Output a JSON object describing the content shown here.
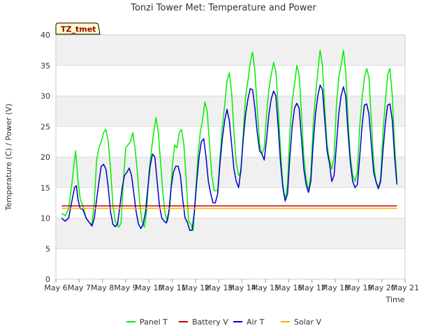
{
  "chart_data": {
    "type": "line",
    "title": "Tonzi Tower Met: Temperature and Power",
    "xlabel": "Time",
    "ylabel": "Temperature (C) / Power (V)",
    "badge": "TZ_tmet",
    "xlim": [
      6,
      21
    ],
    "ylim": [
      0,
      40
    ],
    "x_ticks": [
      6,
      7,
      8,
      9,
      10,
      11,
      12,
      13,
      14,
      15,
      16,
      17,
      18,
      19,
      20,
      21
    ],
    "x_tick_labels": [
      "May 6",
      "May 7",
      "May 8",
      "May 9",
      "May 10",
      "May 11",
      "May 12",
      "May 13",
      "May 14",
      "May 15",
      "May 16",
      "May 17",
      "May 18",
      "May 19",
      "May 20",
      "May 21"
    ],
    "y_ticks": [
      0,
      5,
      10,
      15,
      20,
      25,
      30,
      35,
      40
    ],
    "y_tick_labels": [
      "0",
      "5",
      "10",
      "15",
      "20",
      "25",
      "30",
      "35",
      "40"
    ],
    "series": [
      {
        "name": "Panel T",
        "color": "#00ee00",
        "points": [
          [
            6.25,
            10.8
          ],
          [
            6.4,
            10.4
          ],
          [
            6.55,
            11.5
          ],
          [
            6.7,
            16
          ],
          [
            6.8,
            19.5
          ],
          [
            6.85,
            21
          ],
          [
            6.95,
            16
          ],
          [
            7.05,
            13
          ],
          [
            7.15,
            12.2
          ],
          [
            7.3,
            10
          ],
          [
            7.45,
            9.2
          ],
          [
            7.55,
            9
          ],
          [
            7.65,
            12.5
          ],
          [
            7.75,
            19.5
          ],
          [
            7.85,
            21.5
          ],
          [
            7.95,
            22.5
          ],
          [
            8.05,
            24
          ],
          [
            8.15,
            24.5
          ],
          [
            8.25,
            22.5
          ],
          [
            8.35,
            18
          ],
          [
            8.45,
            12
          ],
          [
            8.55,
            9.5
          ],
          [
            8.7,
            8.5
          ],
          [
            8.8,
            9.2
          ],
          [
            8.9,
            16
          ],
          [
            9.0,
            21.5
          ],
          [
            9.1,
            22
          ],
          [
            9.2,
            22.5
          ],
          [
            9.3,
            24
          ],
          [
            9.4,
            21.5
          ],
          [
            9.5,
            17.5
          ],
          [
            9.6,
            12.5
          ],
          [
            9.7,
            9.5
          ],
          [
            9.8,
            8.5
          ],
          [
            9.9,
            11
          ],
          [
            10.0,
            17.5
          ],
          [
            10.1,
            21
          ],
          [
            10.2,
            24
          ],
          [
            10.3,
            26.5
          ],
          [
            10.4,
            24
          ],
          [
            10.5,
            19
          ],
          [
            10.6,
            14
          ],
          [
            10.7,
            10.5
          ],
          [
            10.8,
            9.5
          ],
          [
            10.9,
            12
          ],
          [
            11.0,
            18.5
          ],
          [
            11.1,
            22
          ],
          [
            11.2,
            21.5
          ],
          [
            11.3,
            24
          ],
          [
            11.4,
            24.5
          ],
          [
            11.5,
            22
          ],
          [
            11.6,
            16
          ],
          [
            11.7,
            9.5
          ],
          [
            11.8,
            9
          ],
          [
            11.9,
            8
          ],
          [
            12.0,
            14
          ],
          [
            12.1,
            20
          ],
          [
            12.2,
            24
          ],
          [
            12.3,
            26
          ],
          [
            12.4,
            29
          ],
          [
            12.5,
            27.5
          ],
          [
            12.6,
            22
          ],
          [
            12.7,
            17
          ],
          [
            12.8,
            14.5
          ],
          [
            12.95,
            14.5
          ],
          [
            13.05,
            20
          ],
          [
            13.15,
            25
          ],
          [
            13.25,
            28.5
          ],
          [
            13.35,
            32.5
          ],
          [
            13.45,
            33.8
          ],
          [
            13.55,
            30.5
          ],
          [
            13.65,
            24
          ],
          [
            13.75,
            19
          ],
          [
            13.85,
            17
          ],
          [
            13.95,
            17.5
          ],
          [
            14.05,
            24
          ],
          [
            14.15,
            30
          ],
          [
            14.25,
            32.5
          ],
          [
            14.35,
            35.5
          ],
          [
            14.45,
            37.2
          ],
          [
            14.55,
            34
          ],
          [
            14.65,
            28
          ],
          [
            14.75,
            22
          ],
          [
            14.85,
            20.5
          ],
          [
            14.95,
            21.5
          ],
          [
            15.05,
            27
          ],
          [
            15.15,
            31
          ],
          [
            15.25,
            33.5
          ],
          [
            15.35,
            35.5
          ],
          [
            15.45,
            34
          ],
          [
            15.55,
            28
          ],
          [
            15.65,
            21
          ],
          [
            15.75,
            15.5
          ],
          [
            15.85,
            13
          ],
          [
            15.95,
            15.5
          ],
          [
            16.05,
            24
          ],
          [
            16.15,
            29
          ],
          [
            16.25,
            32
          ],
          [
            16.35,
            35
          ],
          [
            16.45,
            33.5
          ],
          [
            16.55,
            27
          ],
          [
            16.65,
            20
          ],
          [
            16.75,
            16.5
          ],
          [
            16.85,
            14.5
          ],
          [
            16.95,
            17
          ],
          [
            17.05,
            25
          ],
          [
            17.15,
            30
          ],
          [
            17.25,
            34
          ],
          [
            17.35,
            37.5
          ],
          [
            17.45,
            35
          ],
          [
            17.55,
            28
          ],
          [
            17.65,
            22
          ],
          [
            17.75,
            19.5
          ],
          [
            17.85,
            18
          ],
          [
            17.95,
            20
          ],
          [
            18.05,
            28.5
          ],
          [
            18.15,
            33
          ],
          [
            18.25,
            35
          ],
          [
            18.35,
            37.5
          ],
          [
            18.45,
            34
          ],
          [
            18.55,
            26
          ],
          [
            18.65,
            20
          ],
          [
            18.75,
            17
          ],
          [
            18.85,
            16
          ],
          [
            18.95,
            17.5
          ],
          [
            19.05,
            25
          ],
          [
            19.15,
            29.5
          ],
          [
            19.25,
            33
          ],
          [
            19.35,
            34.5
          ],
          [
            19.45,
            33
          ],
          [
            19.55,
            26
          ],
          [
            19.65,
            19
          ],
          [
            19.75,
            16
          ],
          [
            19.85,
            15
          ],
          [
            19.95,
            16.5
          ],
          [
            20.05,
            24
          ],
          [
            20.15,
            29
          ],
          [
            20.25,
            33.5
          ],
          [
            20.35,
            34.5
          ],
          [
            20.45,
            30
          ],
          [
            20.55,
            22
          ],
          [
            20.65,
            16
          ]
        ]
      },
      {
        "name": "Battery V",
        "color": "#cc0000",
        "points": [
          [
            6.25,
            12
          ],
          [
            20.65,
            12
          ]
        ]
      },
      {
        "name": "Air T",
        "color": "#0000cc",
        "points": [
          [
            6.25,
            10
          ],
          [
            6.4,
            9.5
          ],
          [
            6.55,
            10
          ],
          [
            6.7,
            13
          ],
          [
            6.8,
            15
          ],
          [
            6.88,
            15.3
          ],
          [
            6.95,
            13
          ],
          [
            7.05,
            11.5
          ],
          [
            7.15,
            11.5
          ],
          [
            7.3,
            10
          ],
          [
            7.45,
            9.2
          ],
          [
            7.55,
            8.7
          ],
          [
            7.65,
            10
          ],
          [
            7.75,
            13
          ],
          [
            7.85,
            16
          ],
          [
            7.95,
            18.5
          ],
          [
            8.05,
            18.8
          ],
          [
            8.15,
            18
          ],
          [
            8.25,
            15
          ],
          [
            8.35,
            11
          ],
          [
            8.45,
            9
          ],
          [
            8.55,
            8.6
          ],
          [
            8.65,
            9
          ],
          [
            8.75,
            12
          ],
          [
            8.85,
            15
          ],
          [
            8.95,
            17
          ],
          [
            9.05,
            17.5
          ],
          [
            9.15,
            18.2
          ],
          [
            9.25,
            17
          ],
          [
            9.35,
            14
          ],
          [
            9.45,
            11
          ],
          [
            9.55,
            9
          ],
          [
            9.65,
            8.3
          ],
          [
            9.75,
            9
          ],
          [
            9.85,
            11
          ],
          [
            9.95,
            15
          ],
          [
            10.05,
            18.5
          ],
          [
            10.15,
            20.5
          ],
          [
            10.25,
            20
          ],
          [
            10.35,
            16
          ],
          [
            10.45,
            12
          ],
          [
            10.55,
            10
          ],
          [
            10.65,
            9.5
          ],
          [
            10.75,
            9.2
          ],
          [
            10.85,
            11
          ],
          [
            10.95,
            15
          ],
          [
            11.05,
            17.5
          ],
          [
            11.15,
            18.5
          ],
          [
            11.25,
            18.5
          ],
          [
            11.35,
            17
          ],
          [
            11.45,
            13
          ],
          [
            11.55,
            10
          ],
          [
            11.65,
            9.3
          ],
          [
            11.75,
            8
          ],
          [
            11.85,
            8
          ],
          [
            11.95,
            11
          ],
          [
            12.05,
            16
          ],
          [
            12.15,
            20
          ],
          [
            12.25,
            22.5
          ],
          [
            12.35,
            23
          ],
          [
            12.45,
            20
          ],
          [
            12.55,
            16
          ],
          [
            12.65,
            14
          ],
          [
            12.75,
            12.5
          ],
          [
            12.85,
            12.5
          ],
          [
            12.95,
            14
          ],
          [
            13.05,
            19
          ],
          [
            13.15,
            23
          ],
          [
            13.25,
            26
          ],
          [
            13.35,
            27.8
          ],
          [
            13.45,
            26
          ],
          [
            13.55,
            22
          ],
          [
            13.65,
            18
          ],
          [
            13.75,
            16
          ],
          [
            13.85,
            15
          ],
          [
            13.95,
            18
          ],
          [
            14.05,
            23
          ],
          [
            14.15,
            27
          ],
          [
            14.25,
            29.5
          ],
          [
            14.35,
            31.2
          ],
          [
            14.45,
            31
          ],
          [
            14.55,
            28
          ],
          [
            14.65,
            24
          ],
          [
            14.75,
            21
          ],
          [
            14.85,
            20.5
          ],
          [
            14.95,
            19.5
          ],
          [
            15.05,
            23
          ],
          [
            15.15,
            27
          ],
          [
            15.25,
            29.5
          ],
          [
            15.35,
            30.8
          ],
          [
            15.45,
            30
          ],
          [
            15.55,
            25
          ],
          [
            15.65,
            19
          ],
          [
            15.75,
            15
          ],
          [
            15.85,
            12.8
          ],
          [
            15.95,
            14
          ],
          [
            16.05,
            20
          ],
          [
            16.15,
            25
          ],
          [
            16.25,
            28
          ],
          [
            16.35,
            28.8
          ],
          [
            16.45,
            28
          ],
          [
            16.55,
            23
          ],
          [
            16.65,
            18
          ],
          [
            16.75,
            15.5
          ],
          [
            16.85,
            14.2
          ],
          [
            16.95,
            16
          ],
          [
            17.05,
            22
          ],
          [
            17.15,
            27
          ],
          [
            17.25,
            30
          ],
          [
            17.35,
            31.8
          ],
          [
            17.45,
            31
          ],
          [
            17.55,
            26
          ],
          [
            17.65,
            21
          ],
          [
            17.75,
            19
          ],
          [
            17.85,
            16
          ],
          [
            17.95,
            17
          ],
          [
            18.05,
            22
          ],
          [
            18.15,
            27
          ],
          [
            18.25,
            30
          ],
          [
            18.35,
            31.5
          ],
          [
            18.45,
            30
          ],
          [
            18.55,
            24
          ],
          [
            18.65,
            19
          ],
          [
            18.75,
            16
          ],
          [
            18.85,
            15
          ],
          [
            18.95,
            15.5
          ],
          [
            19.05,
            20
          ],
          [
            19.15,
            25
          ],
          [
            19.25,
            28.5
          ],
          [
            19.35,
            28.7
          ],
          [
            19.45,
            27
          ],
          [
            19.55,
            22
          ],
          [
            19.65,
            17.5
          ],
          [
            19.75,
            16
          ],
          [
            19.85,
            14.8
          ],
          [
            19.95,
            16
          ],
          [
            20.05,
            21
          ],
          [
            20.15,
            25.5
          ],
          [
            20.25,
            28.5
          ],
          [
            20.35,
            28.7
          ],
          [
            20.45,
            26
          ],
          [
            20.55,
            20
          ],
          [
            20.65,
            15.5
          ]
        ]
      },
      {
        "name": "Solar V",
        "color": "#ffaa00",
        "points": [
          [
            6.25,
            11.6
          ],
          [
            20.65,
            11.6
          ]
        ]
      }
    ],
    "legend_position": "bottom"
  }
}
